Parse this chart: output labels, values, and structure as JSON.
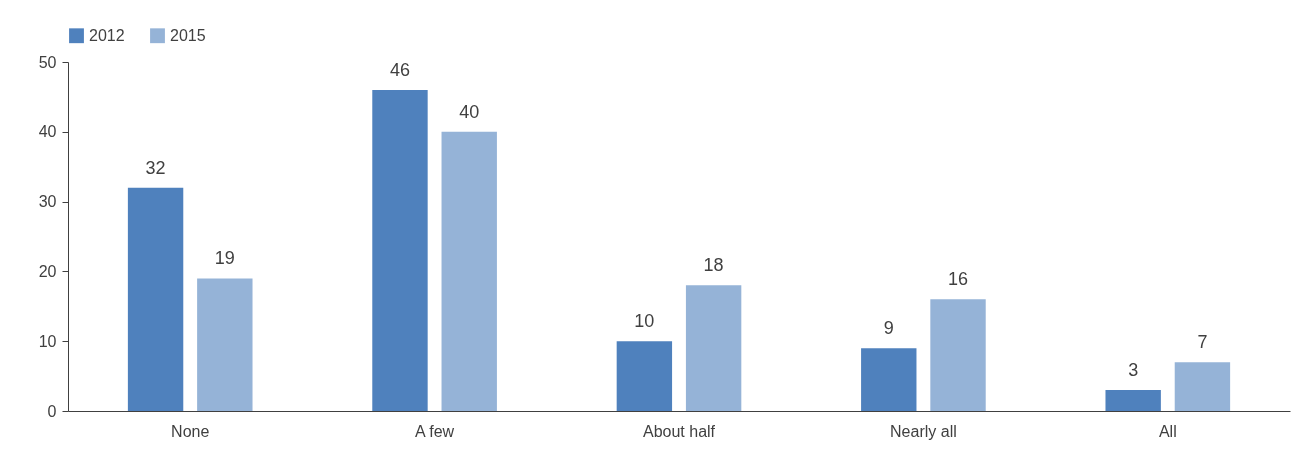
{
  "chart_data": {
    "type": "bar",
    "categories": [
      "None",
      "A few",
      "About half",
      "Nearly all",
      "All"
    ],
    "series": [
      {
        "name": "2012",
        "color": "#4f81bd",
        "values": [
          32,
          46,
          10,
          9,
          3
        ]
      },
      {
        "name": "2015",
        "color": "#95b3d7",
        "values": [
          19,
          40,
          18,
          16,
          7
        ]
      }
    ],
    "ylim": [
      0,
      50
    ],
    "yticks": [
      0,
      10,
      20,
      30,
      40,
      50
    ],
    "data_labels": true,
    "legend": "top"
  }
}
